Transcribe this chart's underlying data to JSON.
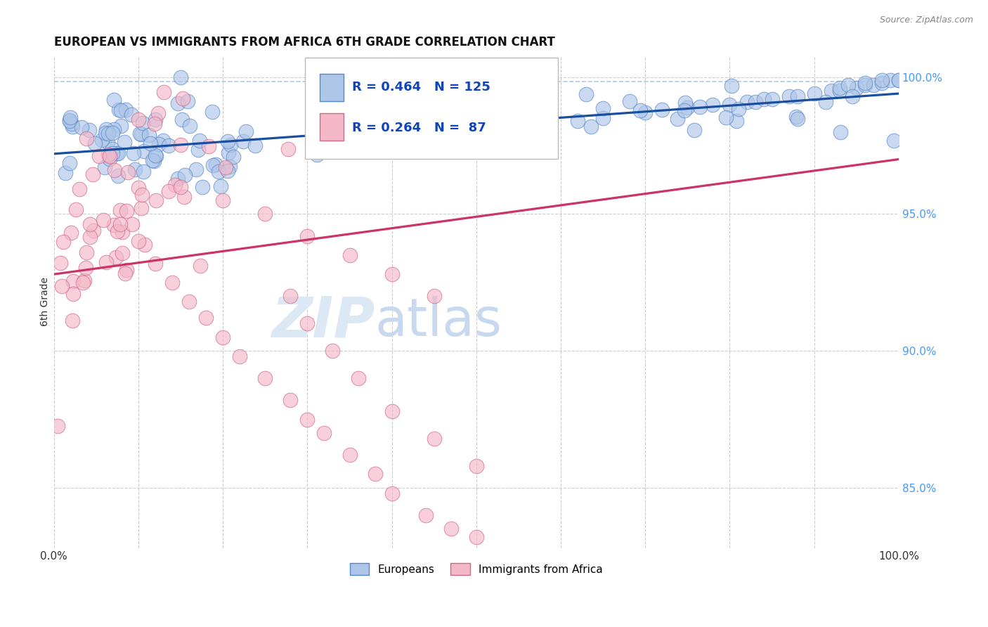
{
  "title": "EUROPEAN VS IMMIGRANTS FROM AFRICA 6TH GRADE CORRELATION CHART",
  "source": "Source: ZipAtlas.com",
  "ylabel": "6th Grade",
  "xlim": [
    0.0,
    1.0
  ],
  "ylim": [
    0.828,
    1.008
  ],
  "x_tick_positions": [
    0.0,
    0.1,
    0.2,
    0.3,
    0.4,
    0.5,
    0.6,
    0.7,
    0.8,
    0.9,
    1.0
  ],
  "x_tick_labels": [
    "0.0%",
    "",
    "",
    "",
    "",
    "",
    "",
    "",
    "",
    "",
    "100.0%"
  ],
  "y_ticks_right": [
    0.85,
    0.9,
    0.95,
    1.0
  ],
  "y_tick_labels_right": [
    "85.0%",
    "90.0%",
    "95.0%",
    "100.0%"
  ],
  "legend_r_blue": "R = 0.464",
  "legend_n_blue": "N = 125",
  "legend_r_pink": "R = 0.264",
  "legend_n_pink": "N =  87",
  "legend_label_blue": "Europeans",
  "legend_label_pink": "Immigrants from Africa",
  "blue_fill": "#aec6e8",
  "blue_edge": "#5588cc",
  "pink_fill": "#f4b8c8",
  "pink_edge": "#d06888",
  "blue_line_color": "#1a4fa0",
  "blue_dash_color": "#99bbdd",
  "pink_line_color": "#cc3366",
  "title_fontsize": 12,
  "watermark_zip_color": "#dde8f5",
  "watermark_atlas_color": "#c8d8ee",
  "watermark_fontsize": 58,
  "grid_color": "#cccccc",
  "right_axis_color": "#4499ff",
  "source_color": "#888888"
}
